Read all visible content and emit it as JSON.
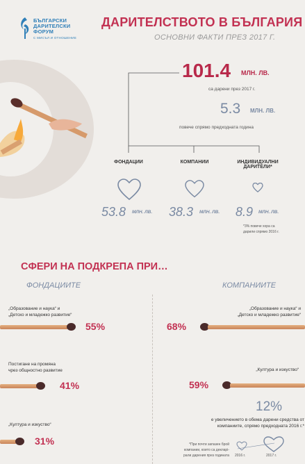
{
  "logo": {
    "line1": "БЪЛГАРСКИ",
    "line2": "ДАРИТЕЛСКИ",
    "line3": "ФОРУМ",
    "tagline": "С МИСЪЛ И ОТНОШЕНИЕ"
  },
  "header": {
    "title": "ДАРИТЕЛСТВОТО В БЪЛГАРИЯ",
    "subtitle": "ОСНОВНИ ФАКТИ ПРЕЗ 2017 Г."
  },
  "total": {
    "value": "101.4",
    "unit": "МЛН. ЛВ.",
    "note": "са дарени през 2017 г."
  },
  "increase": {
    "value": "5.3",
    "unit": "МЛН. ЛВ.",
    "note": "повече спрямо предходната година"
  },
  "donors": [
    {
      "label": "ФОНДАЦИИ",
      "value": "53.8",
      "unit": "МЛН. ЛВ."
    },
    {
      "label": "КОМПАНИИ",
      "value": "38.3",
      "unit": "МЛН. ЛВ."
    },
    {
      "label": "ИНДИВИДУАЛНИ",
      "label2": "ДАРИТЕЛИ*",
      "value": "8.9",
      "unit": "МЛН. ЛВ."
    }
  ],
  "donor_footnote": {
    "line1": "*3% повече хора са",
    "line2": "дарили спрямо 2016 г."
  },
  "support": {
    "title": "СФЕРИ НА ПОДКРЕПА ПРИ…",
    "foundations": {
      "head": "ФОНДАЦИИТЕ",
      "items": [
        {
          "l1": "„Образование и наука“ и",
          "l2": "„Детско и младежко развитие“",
          "pct": "55%",
          "share": 55
        },
        {
          "l1": "Постигане на промяна",
          "l2": "чрез общностно развитие",
          "pct": "41%",
          "share": 41
        },
        {
          "l1": "„Култура и изкуство“",
          "l2": "",
          "pct": "31%",
          "share": 31
        }
      ]
    },
    "companies": {
      "head": "КОМПАНИИТЕ",
      "items": [
        {
          "l1": "„Образование и наука“ и",
          "l2": "„Детско и младежко развитие“",
          "pct": "68%",
          "share": 68
        },
        {
          "l1": "„Култура и изкуство“",
          "l2": "",
          "pct": "59%",
          "share": 59
        }
      ]
    }
  },
  "growth": {
    "value": "12%",
    "l1": "е увеличението в обема дарени средства от",
    "l2": "компаниите, спрямо предходната 2016 г.*",
    "fn1": "*При почти запазен брой",
    "fn2": "компании, които са декларі-",
    "fn3": "рали дарения през годината",
    "year1": "2016 г.",
    "year2": "2017 г."
  },
  "colors": {
    "accent": "#c23152",
    "muted": "#7a8aa3"
  }
}
